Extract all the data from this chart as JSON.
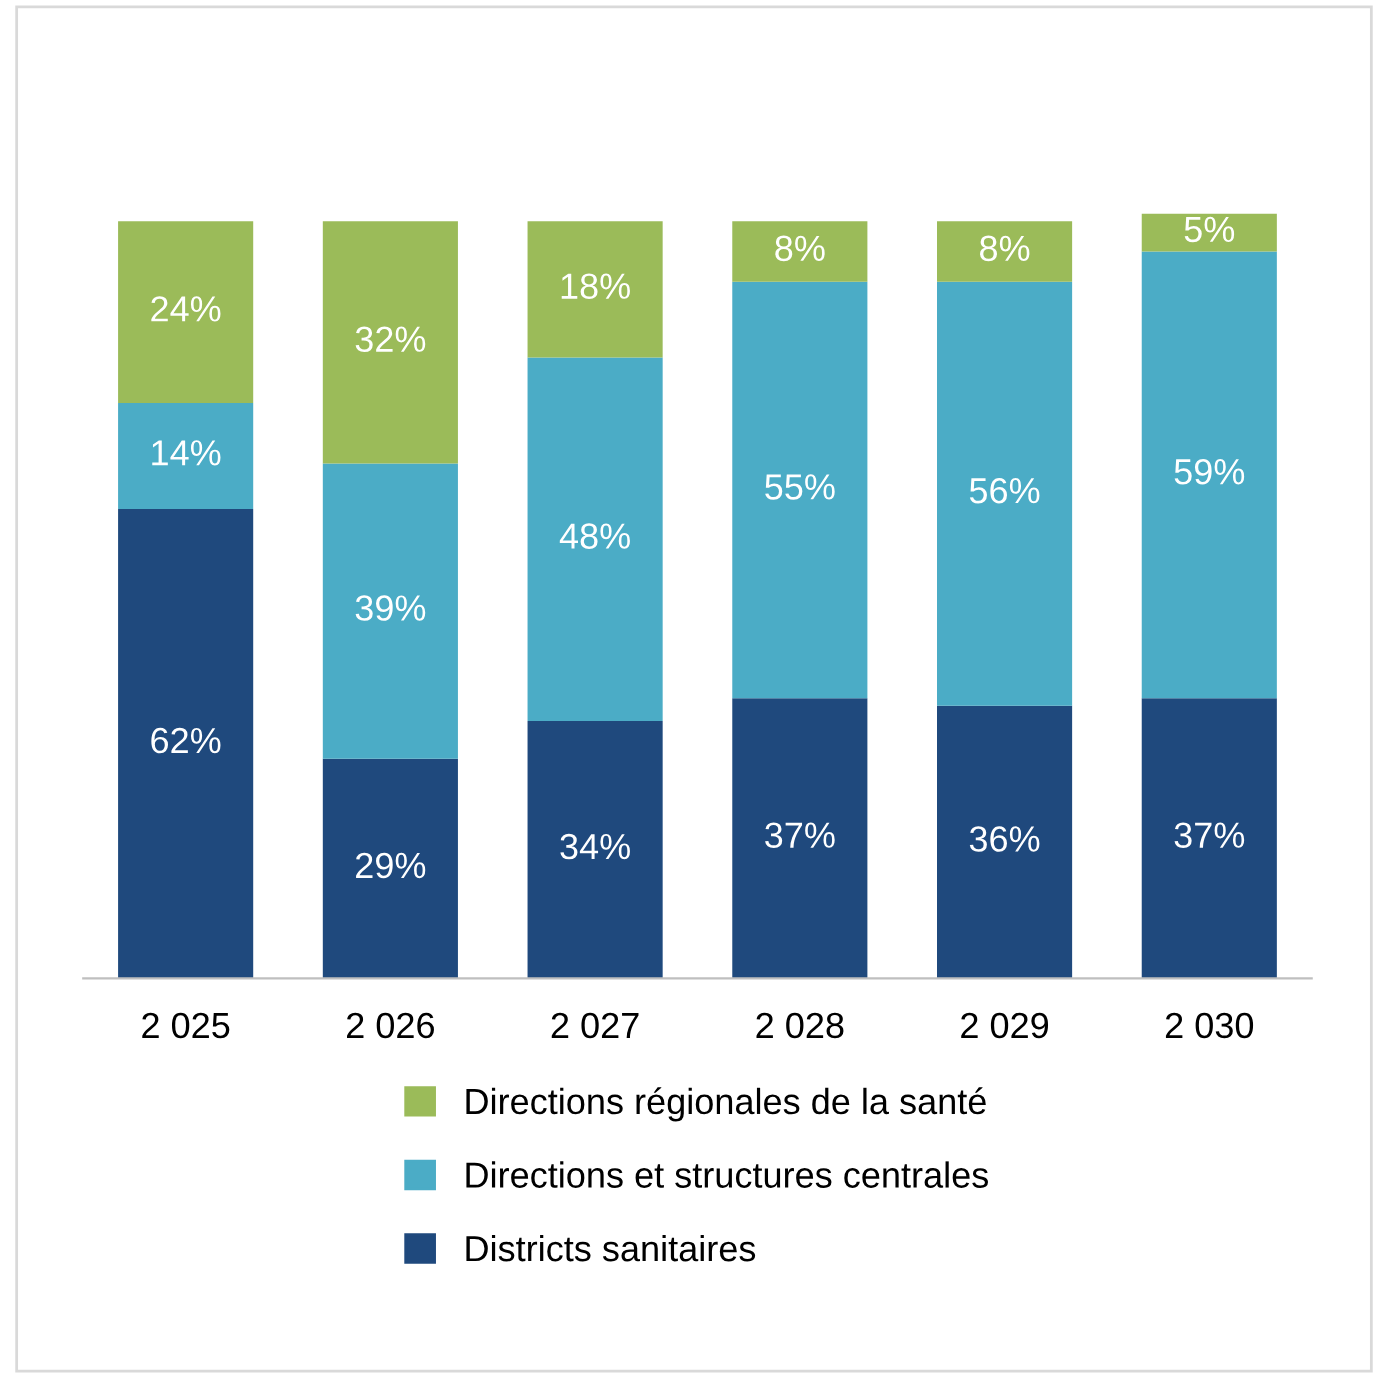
{
  "chart_data": {
    "type": "bar",
    "stacked": true,
    "categories": [
      "2 025",
      "2 026",
      "2 027",
      "2 028",
      "2 029",
      "2 030"
    ],
    "series": [
      {
        "name": "Districts sanitaires",
        "color": "#1f497d",
        "values": [
          62,
          29,
          34,
          37,
          36,
          37
        ],
        "value_labels": [
          "62%",
          "29%",
          "34%",
          "37%",
          "36%",
          "37%"
        ]
      },
      {
        "name": "Directions et structures centrales",
        "color": "#4bacc6",
        "values": [
          14,
          39,
          48,
          55,
          56,
          59
        ],
        "value_labels": [
          "14%",
          "39%",
          "48%",
          "55%",
          "56%",
          "59%"
        ]
      },
      {
        "name": "Directions régionales de la santé",
        "color": "#9bbb59",
        "values": [
          24,
          32,
          18,
          8,
          8,
          5
        ],
        "value_labels": [
          "24%",
          "32%",
          "18%",
          "8%",
          "8%",
          "5%"
        ]
      }
    ],
    "legend": "bottom",
    "tick_labels": "x",
    "grid": false
  }
}
